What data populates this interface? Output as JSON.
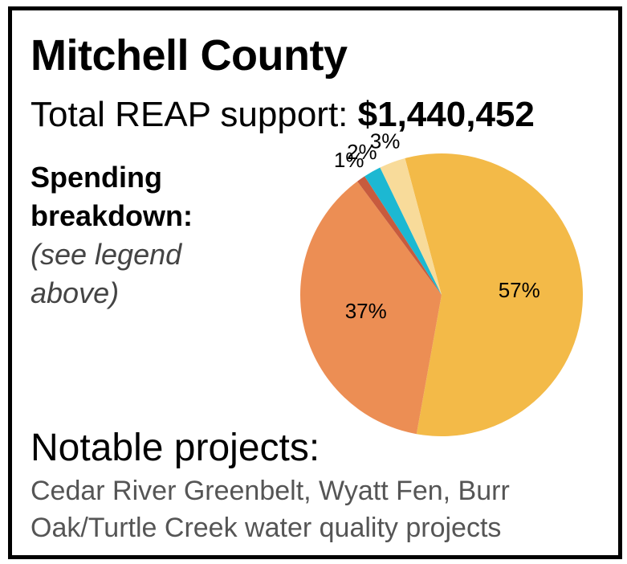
{
  "card": {
    "title": "Mitchell County",
    "total_label": "Total REAP support:",
    "total_value": "$1,440,452",
    "breakdown_heading_1": "Spending",
    "breakdown_heading_2": "breakdown:",
    "breakdown_note_1": "(see legend",
    "breakdown_note_2": "above)",
    "notable_heading": "Notable projects:",
    "notable_text": "Cedar River Greenbelt, Wyatt Fen, Burr Oak/Turtle Creek water quality projects"
  },
  "chart_data": {
    "type": "pie",
    "slices": [
      {
        "value": 57,
        "label": "57%",
        "color": "#F3BA48"
      },
      {
        "value": 37,
        "label": "37%",
        "color": "#EC8E54"
      },
      {
        "value": 1,
        "label": "1%",
        "color": "#C75B3E"
      },
      {
        "value": 2,
        "label": "2%",
        "color": "#1CB8D2"
      },
      {
        "value": 3,
        "label": "3%",
        "color": "#F8DB9A"
      }
    ]
  }
}
